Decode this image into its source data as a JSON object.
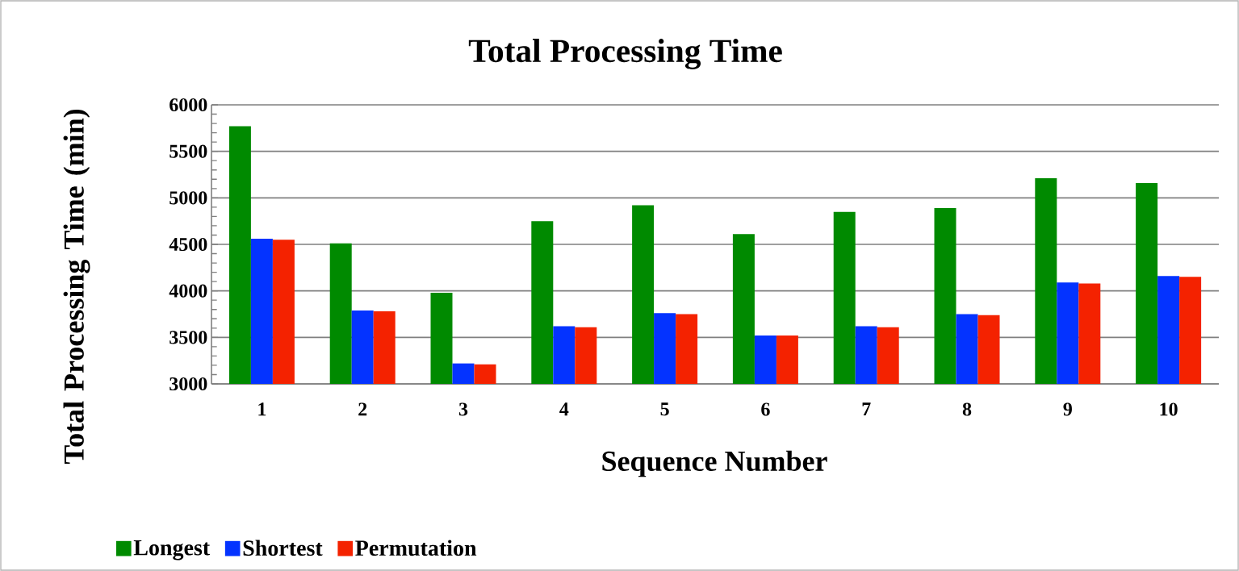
{
  "chart_data": {
    "type": "bar",
    "title": "Total Processing Time",
    "xlabel": "Sequence Number",
    "ylabel": "Total Processing Time (min)",
    "categories": [
      "1",
      "2",
      "3",
      "4",
      "5",
      "6",
      "7",
      "8",
      "9",
      "10"
    ],
    "series": [
      {
        "name": "Longest",
        "color": "#008a00",
        "values": [
          5770,
          4510,
          3980,
          4750,
          4920,
          4610,
          4850,
          4890,
          5210,
          5160
        ]
      },
      {
        "name": "Shortest",
        "color": "#0433ff",
        "values": [
          4560,
          3790,
          3220,
          3620,
          3760,
          3520,
          3620,
          3750,
          4090,
          4160
        ]
      },
      {
        "name": "Permutation",
        "color": "#f42200",
        "values": [
          4550,
          3780,
          3210,
          3610,
          3750,
          3520,
          3610,
          3740,
          4080,
          4150
        ]
      }
    ],
    "ylim": [
      3000,
      6000
    ],
    "yticks": [
      3000,
      3500,
      4000,
      4500,
      5000,
      5500,
      6000
    ],
    "grid": "y",
    "legend": "bottom left"
  }
}
